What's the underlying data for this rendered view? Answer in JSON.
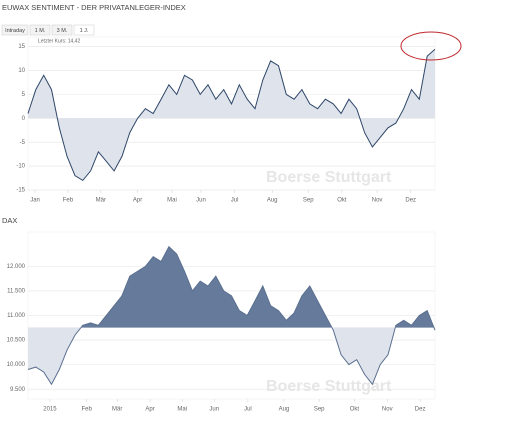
{
  "chart_data": [
    {
      "type": "area",
      "title": "EUWAX SENTIMENT - DER PRIVATANLEGER-INDEX",
      "range_buttons": [
        "Intraday",
        "1 M.",
        "3 M.",
        "1 J."
      ],
      "annotation": "Letzter Kurs: 14,42",
      "watermark": "Boerse Stuttgart",
      "baseline": 0,
      "line_color": "#2e4668",
      "fill_above": "#dfe4ec",
      "fill_below": "#dfe4ec",
      "x": [
        0,
        1,
        2,
        3,
        4,
        5,
        6,
        7,
        8,
        9,
        10,
        11,
        12,
        13,
        14,
        15,
        16,
        17,
        18,
        19,
        20,
        21,
        22,
        23,
        24,
        25,
        26,
        27,
        28,
        29,
        30,
        31,
        32,
        33,
        34,
        35,
        36,
        37,
        38,
        39,
        40,
        41,
        42,
        43,
        44,
        45,
        46,
        47,
        48,
        49,
        50,
        51,
        52
      ],
      "values": [
        1,
        6,
        9,
        6,
        -2,
        -8,
        -12,
        -13,
        -11,
        -7,
        -9,
        -11,
        -8,
        -3,
        0,
        2,
        1,
        4,
        7,
        5,
        9,
        8,
        5,
        7,
        4,
        6,
        3,
        7,
        4,
        2,
        8,
        12,
        11,
        5,
        4,
        6,
        3,
        2,
        4,
        3,
        1,
        4,
        2,
        -3,
        -6,
        -4,
        -2,
        -1,
        2,
        6,
        4,
        13,
        14.42
      ],
      "xlim": [
        0,
        52
      ],
      "xticks": [
        {
          "value": 0.9,
          "label": "Jan"
        },
        {
          "value": 5.1,
          "label": "Feb"
        },
        {
          "value": 9.3,
          "label": "Mär"
        },
        {
          "value": 14,
          "label": "Apr"
        },
        {
          "value": 18.4,
          "label": "Mai"
        },
        {
          "value": 22.1,
          "label": "Jun"
        },
        {
          "value": 26.4,
          "label": "Jul"
        },
        {
          "value": 31.2,
          "label": "Aug"
        },
        {
          "value": 35.8,
          "label": "Sep"
        },
        {
          "value": 40.1,
          "label": "Okt"
        },
        {
          "value": 44.6,
          "label": "Nov"
        },
        {
          "value": 48.9,
          "label": "Dez"
        }
      ],
      "ylim": [
        -15,
        17
      ],
      "yticks": [
        -15,
        -10,
        -5,
        0,
        5,
        10,
        15
      ],
      "grid": true
    },
    {
      "type": "area",
      "title": "DAX",
      "watermark": "Boerse Stuttgart",
      "baseline": 10750,
      "line_color": "#5b6f8f",
      "fill_above": "#667b9b",
      "fill_below": "#dfe4ec",
      "x": [
        0,
        1,
        2,
        3,
        4,
        5,
        6,
        7,
        8,
        9,
        10,
        11,
        12,
        13,
        14,
        15,
        16,
        17,
        18,
        19,
        20,
        21,
        22,
        23,
        24,
        25,
        26,
        27,
        28,
        29,
        30,
        31,
        32,
        33,
        34,
        35,
        36,
        37,
        38,
        39,
        40,
        41,
        42,
        43,
        44,
        45,
        46,
        47,
        48,
        49,
        50,
        51,
        52
      ],
      "values": [
        9900,
        9950,
        9850,
        9600,
        9900,
        10300,
        10600,
        10800,
        10850,
        10800,
        11000,
        11200,
        11400,
        11800,
        11900,
        12000,
        12200,
        12100,
        12400,
        12250,
        11900,
        11500,
        11700,
        11600,
        11800,
        11500,
        11400,
        11100,
        11000,
        11300,
        11600,
        11200,
        11100,
        10900,
        11050,
        11400,
        11600,
        11300,
        11000,
        10700,
        10200,
        10000,
        10100,
        9800,
        9600,
        10000,
        10200,
        10800,
        10900,
        10800,
        11000,
        11100,
        10700
      ],
      "xlim": [
        0,
        52
      ],
      "xticks": [
        {
          "value": 2.8,
          "label": "2015"
        },
        {
          "value": 7.5,
          "label": "Feb"
        },
        {
          "value": 11.4,
          "label": "Mär"
        },
        {
          "value": 15.6,
          "label": "Apr"
        },
        {
          "value": 19.7,
          "label": "Mai"
        },
        {
          "value": 23.8,
          "label": "Jun"
        },
        {
          "value": 28.1,
          "label": "Jul"
        },
        {
          "value": 32.7,
          "label": "Aug"
        },
        {
          "value": 37.2,
          "label": "Sep"
        },
        {
          "value": 41.7,
          "label": "Okt"
        },
        {
          "value": 45.9,
          "label": "Nov"
        },
        {
          "value": 50.1,
          "label": "Dez"
        }
      ],
      "ylim": [
        9300,
        12700
      ],
      "yticks": [
        {
          "value": 9500,
          "label": "9.500"
        },
        {
          "value": 10000,
          "label": "10.000"
        },
        {
          "value": 10500,
          "label": "10.500"
        },
        {
          "value": 11000,
          "label": "11.000"
        },
        {
          "value": 11500,
          "label": "11.500"
        },
        {
          "value": 12000,
          "label": "12.000"
        }
      ],
      "grid": true
    }
  ]
}
